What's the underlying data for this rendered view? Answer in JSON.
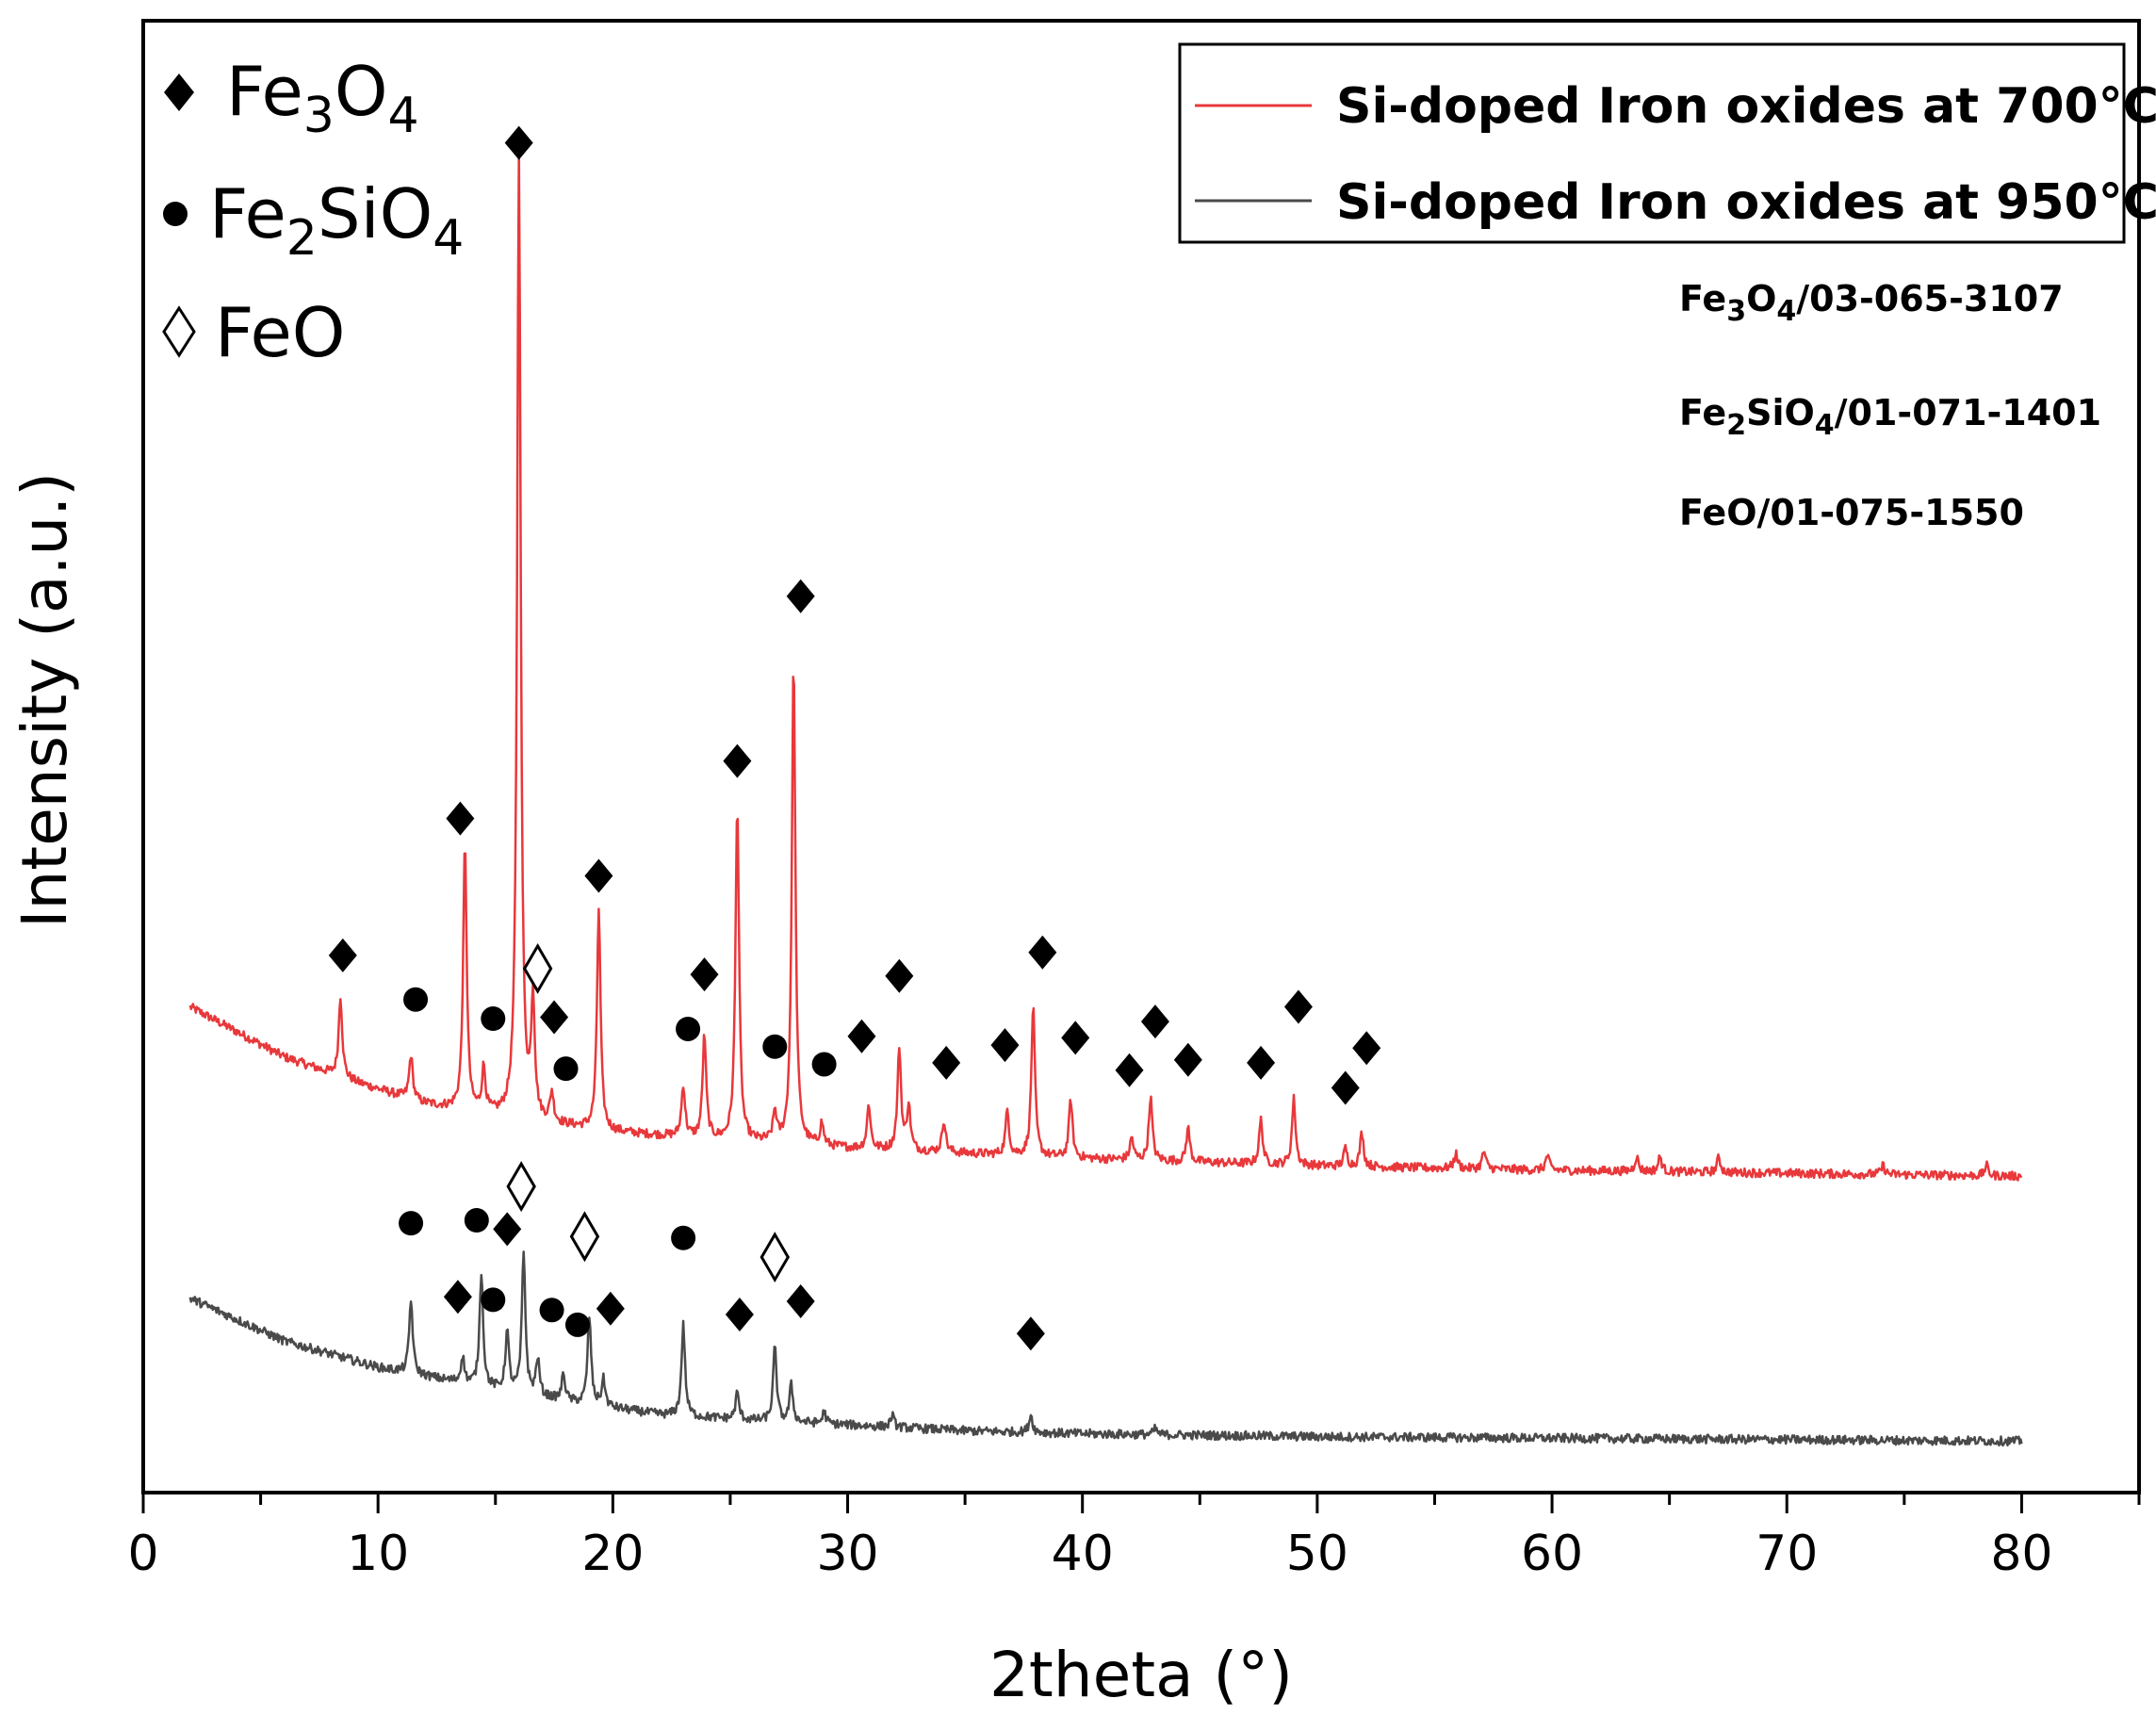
{
  "chart_data": {
    "type": "line",
    "title": "",
    "xlabel": "2theta (°)",
    "ylabel": "Intensity (a.u.)",
    "xlim": [
      0,
      85
    ],
    "x_ticks": [
      "0",
      "10",
      "20",
      "30",
      "40",
      "50",
      "60",
      "70",
      "80"
    ],
    "y_ticks_labeled": false,
    "grid": false,
    "series": [
      {
        "name": "Si-doped Iron oxides at 700°C",
        "color": "#e8383b",
        "offset": 0.215,
        "baseline": [
          [
            2,
            0.115
          ],
          [
            6,
            0.081
          ],
          [
            9,
            0.064
          ],
          [
            12,
            0.049
          ],
          [
            16,
            0.038
          ],
          [
            20,
            0.03
          ],
          [
            25,
            0.024
          ],
          [
            30,
            0.019
          ],
          [
            40,
            0.012
          ],
          [
            50,
            0.007
          ],
          [
            60,
            0.004
          ],
          [
            80,
            0.0
          ]
        ],
        "peaks": [
          [
            8.4,
            0.055
          ],
          [
            11.4,
            0.03
          ],
          [
            13.7,
            0.18
          ],
          [
            14.5,
            0.03
          ],
          [
            16.0,
            0.655
          ],
          [
            16.6,
            0.08
          ],
          [
            17.4,
            0.02
          ],
          [
            19.4,
            0.15
          ],
          [
            23.0,
            0.035
          ],
          [
            23.9,
            0.07
          ],
          [
            25.3,
            0.23
          ],
          [
            26.9,
            0.02
          ],
          [
            27.7,
            0.33
          ],
          [
            28.9,
            0.015
          ],
          [
            30.9,
            0.03
          ],
          [
            32.2,
            0.07
          ],
          [
            32.6,
            0.03
          ],
          [
            34.1,
            0.022
          ],
          [
            36.8,
            0.03
          ],
          [
            37.9,
            0.102
          ],
          [
            39.5,
            0.04
          ],
          [
            42.1,
            0.015
          ],
          [
            42.9,
            0.043
          ],
          [
            44.5,
            0.023
          ],
          [
            47.6,
            0.03
          ],
          [
            49.0,
            0.045
          ],
          [
            51.2,
            0.012
          ],
          [
            51.9,
            0.023
          ],
          [
            55.9,
            0.01
          ],
          [
            57.1,
            0.012
          ],
          [
            59.8,
            0.01
          ],
          [
            63.6,
            0.01
          ],
          [
            64.6,
            0.01
          ],
          [
            67.1,
            0.01
          ],
          [
            74.1,
            0.006
          ],
          [
            78.5,
            0.007
          ]
        ],
        "noise": 0.003
      },
      {
        "name": "Si-doped Iron oxides at 950°C",
        "color": "#4a4a4a",
        "offset": 0.035,
        "baseline": [
          [
            2,
            0.097
          ],
          [
            6,
            0.068
          ],
          [
            10,
            0.05
          ],
          [
            14,
            0.038
          ],
          [
            18,
            0.027
          ],
          [
            22,
            0.018
          ],
          [
            26,
            0.014
          ],
          [
            30,
            0.011
          ],
          [
            35,
            0.007
          ],
          [
            40,
            0.005
          ],
          [
            50,
            0.003
          ],
          [
            80,
            0.0
          ]
        ],
        "peaks": [
          [
            11.4,
            0.05
          ],
          [
            13.6,
            0.018
          ],
          [
            14.4,
            0.078
          ],
          [
            15.5,
            0.04
          ],
          [
            16.2,
            0.095
          ],
          [
            16.8,
            0.025
          ],
          [
            17.9,
            0.018
          ],
          [
            19.0,
            0.06
          ],
          [
            19.6,
            0.018
          ],
          [
            23.0,
            0.062
          ],
          [
            25.3,
            0.018
          ],
          [
            26.9,
            0.05
          ],
          [
            27.6,
            0.025
          ],
          [
            29.0,
            0.008
          ],
          [
            31.9,
            0.008
          ],
          [
            37.8,
            0.012
          ],
          [
            43.1,
            0.004
          ]
        ],
        "noise": 0.003
      }
    ],
    "peak_markers": [
      {
        "phase": "Fe3O4",
        "x": 8.5,
        "y": 0.365
      },
      {
        "phase": "Fe2SiO4",
        "x": 11.6,
        "y": 0.335
      },
      {
        "phase": "Fe3O4",
        "x": 13.5,
        "y": 0.458
      },
      {
        "phase": "Fe2SiO4",
        "x": 14.9,
        "y": 0.322
      },
      {
        "phase": "FeO",
        "x": 16.8,
        "y": 0.356
      },
      {
        "phase": "Fe3O4",
        "x": 16.0,
        "y": 0.917
      },
      {
        "phase": "Fe3O4",
        "x": 17.5,
        "y": 0.323
      },
      {
        "phase": "Fe2SiO4",
        "x": 18.0,
        "y": 0.288
      },
      {
        "phase": "Fe3O4",
        "x": 19.4,
        "y": 0.419
      },
      {
        "phase": "Fe2SiO4",
        "x": 23.2,
        "y": 0.315
      },
      {
        "phase": "Fe3O4",
        "x": 23.9,
        "y": 0.352
      },
      {
        "phase": "Fe3O4",
        "x": 25.3,
        "y": 0.497
      },
      {
        "phase": "Fe2SiO4",
        "x": 26.9,
        "y": 0.303
      },
      {
        "phase": "Fe3O4",
        "x": 28.0,
        "y": 0.609
      },
      {
        "phase": "Fe2SiO4",
        "x": 29.0,
        "y": 0.291
      },
      {
        "phase": "Fe3O4",
        "x": 30.6,
        "y": 0.31
      },
      {
        "phase": "Fe3O4",
        "x": 32.2,
        "y": 0.351
      },
      {
        "phase": "Fe3O4",
        "x": 34.2,
        "y": 0.292
      },
      {
        "phase": "Fe3O4",
        "x": 36.7,
        "y": 0.304
      },
      {
        "phase": "Fe3O4",
        "x": 38.3,
        "y": 0.367
      },
      {
        "phase": "Fe3O4",
        "x": 39.7,
        "y": 0.309
      },
      {
        "phase": "Fe3O4",
        "x": 42.0,
        "y": 0.287
      },
      {
        "phase": "Fe3O4",
        "x": 43.1,
        "y": 0.32
      },
      {
        "phase": "Fe3O4",
        "x": 44.5,
        "y": 0.294
      },
      {
        "phase": "Fe3O4",
        "x": 47.6,
        "y": 0.292
      },
      {
        "phase": "Fe3O4",
        "x": 49.2,
        "y": 0.33
      },
      {
        "phase": "Fe3O4",
        "x": 51.2,
        "y": 0.275
      },
      {
        "phase": "Fe3O4",
        "x": 52.1,
        "y": 0.302
      },
      {
        "phase": "Fe2SiO4",
        "x": 11.4,
        "y": 0.183
      },
      {
        "phase": "Fe2SiO4",
        "x": 14.2,
        "y": 0.185
      },
      {
        "phase": "Fe3O4",
        "x": 15.5,
        "y": 0.179
      },
      {
        "phase": "FeO",
        "x": 16.1,
        "y": 0.208
      },
      {
        "phase": "Fe3O4",
        "x": 13.4,
        "y": 0.133
      },
      {
        "phase": "Fe2SiO4",
        "x": 14.9,
        "y": 0.131
      },
      {
        "phase": "Fe2SiO4",
        "x": 17.4,
        "y": 0.124
      },
      {
        "phase": "Fe2SiO4",
        "x": 18.5,
        "y": 0.114
      },
      {
        "phase": "FeO",
        "x": 18.8,
        "y": 0.174
      },
      {
        "phase": "Fe3O4",
        "x": 19.9,
        "y": 0.125
      },
      {
        "phase": "Fe2SiO4",
        "x": 23.0,
        "y": 0.173
      },
      {
        "phase": "Fe3O4",
        "x": 25.4,
        "y": 0.121
      },
      {
        "phase": "FeO",
        "x": 26.9,
        "y": 0.16
      },
      {
        "phase": "Fe3O4",
        "x": 28.0,
        "y": 0.13
      },
      {
        "phase": "Fe3O4",
        "x": 37.8,
        "y": 0.108
      }
    ],
    "phase_legend": [
      {
        "key": "Fe3O4",
        "symbol": "filled-diamond",
        "label": "Fe",
        "sub1": "3",
        "mid": "O",
        "sub2": "4"
      },
      {
        "key": "Fe2SiO4",
        "symbol": "filled-circle",
        "label": "Fe",
        "sub1": "2",
        "mid": "SiO",
        "sub2": "4"
      },
      {
        "key": "FeO",
        "symbol": "open-diamond",
        "label": "FeO"
      }
    ],
    "reference_cards": [
      {
        "pre": "Fe",
        "sub1": "3",
        "mid": "O",
        "sub2": "4",
        "code": "/03-065-3107"
      },
      {
        "pre": "Fe",
        "sub1": "2",
        "mid": "SiO",
        "sub2": "4",
        "code": "/01-071-1401"
      },
      {
        "pre": "FeO",
        "code": "/01-075-1550"
      }
    ],
    "legend_position": "top-right"
  }
}
